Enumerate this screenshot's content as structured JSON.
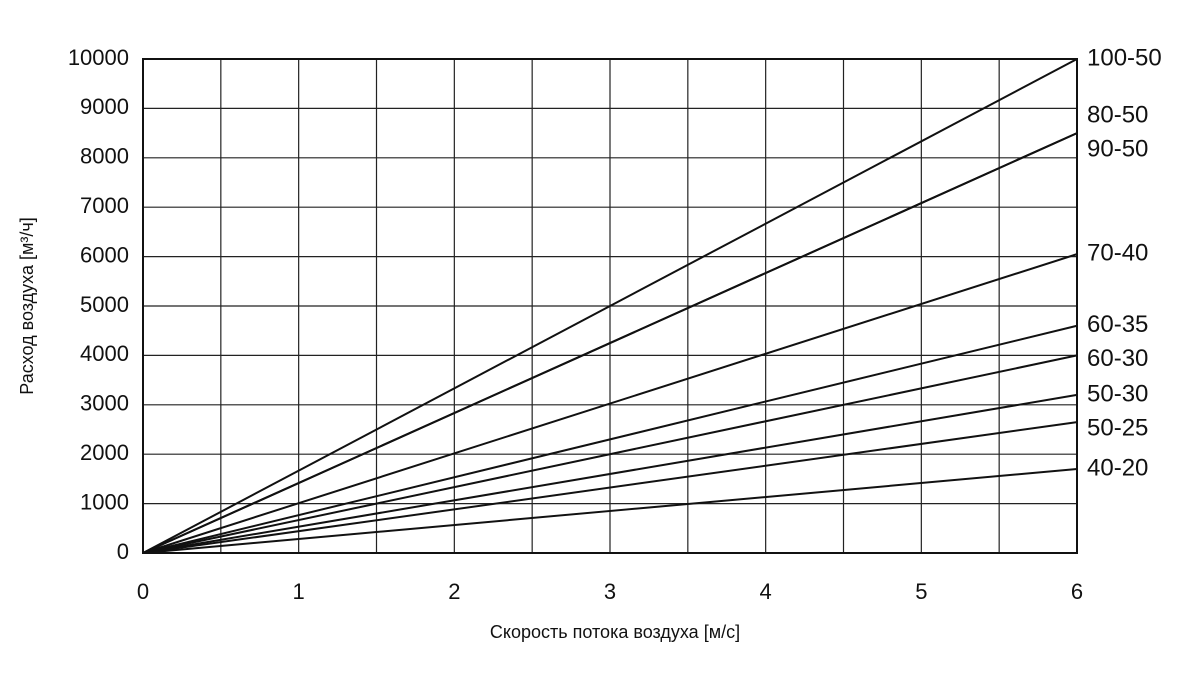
{
  "chart_data": {
    "type": "line",
    "x_label": "Скорость потока воздуха [м/с]",
    "y_label": "Расход воздуха [м³/ч]",
    "x": [
      0,
      6
    ],
    "series": [
      {
        "name": "100-50",
        "color": "#111111",
        "values": [
          0,
          10000
        ]
      },
      {
        "name": "80-50",
        "color": "#111111",
        "values": [
          0,
          8500
        ]
      },
      {
        "name": "90-50",
        "color": "#111111",
        "values": [
          0,
          8500
        ]
      },
      {
        "name": "70-40",
        "color": "#111111",
        "values": [
          0,
          6050
        ]
      },
      {
        "name": "60-35",
        "color": "#111111",
        "values": [
          0,
          4600
        ]
      },
      {
        "name": "60-30",
        "color": "#111111",
        "values": [
          0,
          4000
        ]
      },
      {
        "name": "50-30",
        "color": "#111111",
        "values": [
          0,
          3200
        ]
      },
      {
        "name": "50-25",
        "color": "#111111",
        "values": [
          0,
          2650
        ]
      },
      {
        "name": "40-20",
        "color": "#111111",
        "values": [
          0,
          1700
        ]
      }
    ],
    "xlim": [
      0,
      6
    ],
    "xticks": [
      0,
      1,
      2,
      3,
      4,
      5,
      6
    ],
    "xminorticks": [
      0.5,
      1.5,
      2.5,
      3.5,
      4.5,
      5.5
    ],
    "ylim": [
      0,
      10000
    ],
    "yticks": [
      0,
      1000,
      2000,
      3000,
      4000,
      5000,
      6000,
      7000,
      8000,
      9000,
      10000
    ],
    "grid": true
  }
}
